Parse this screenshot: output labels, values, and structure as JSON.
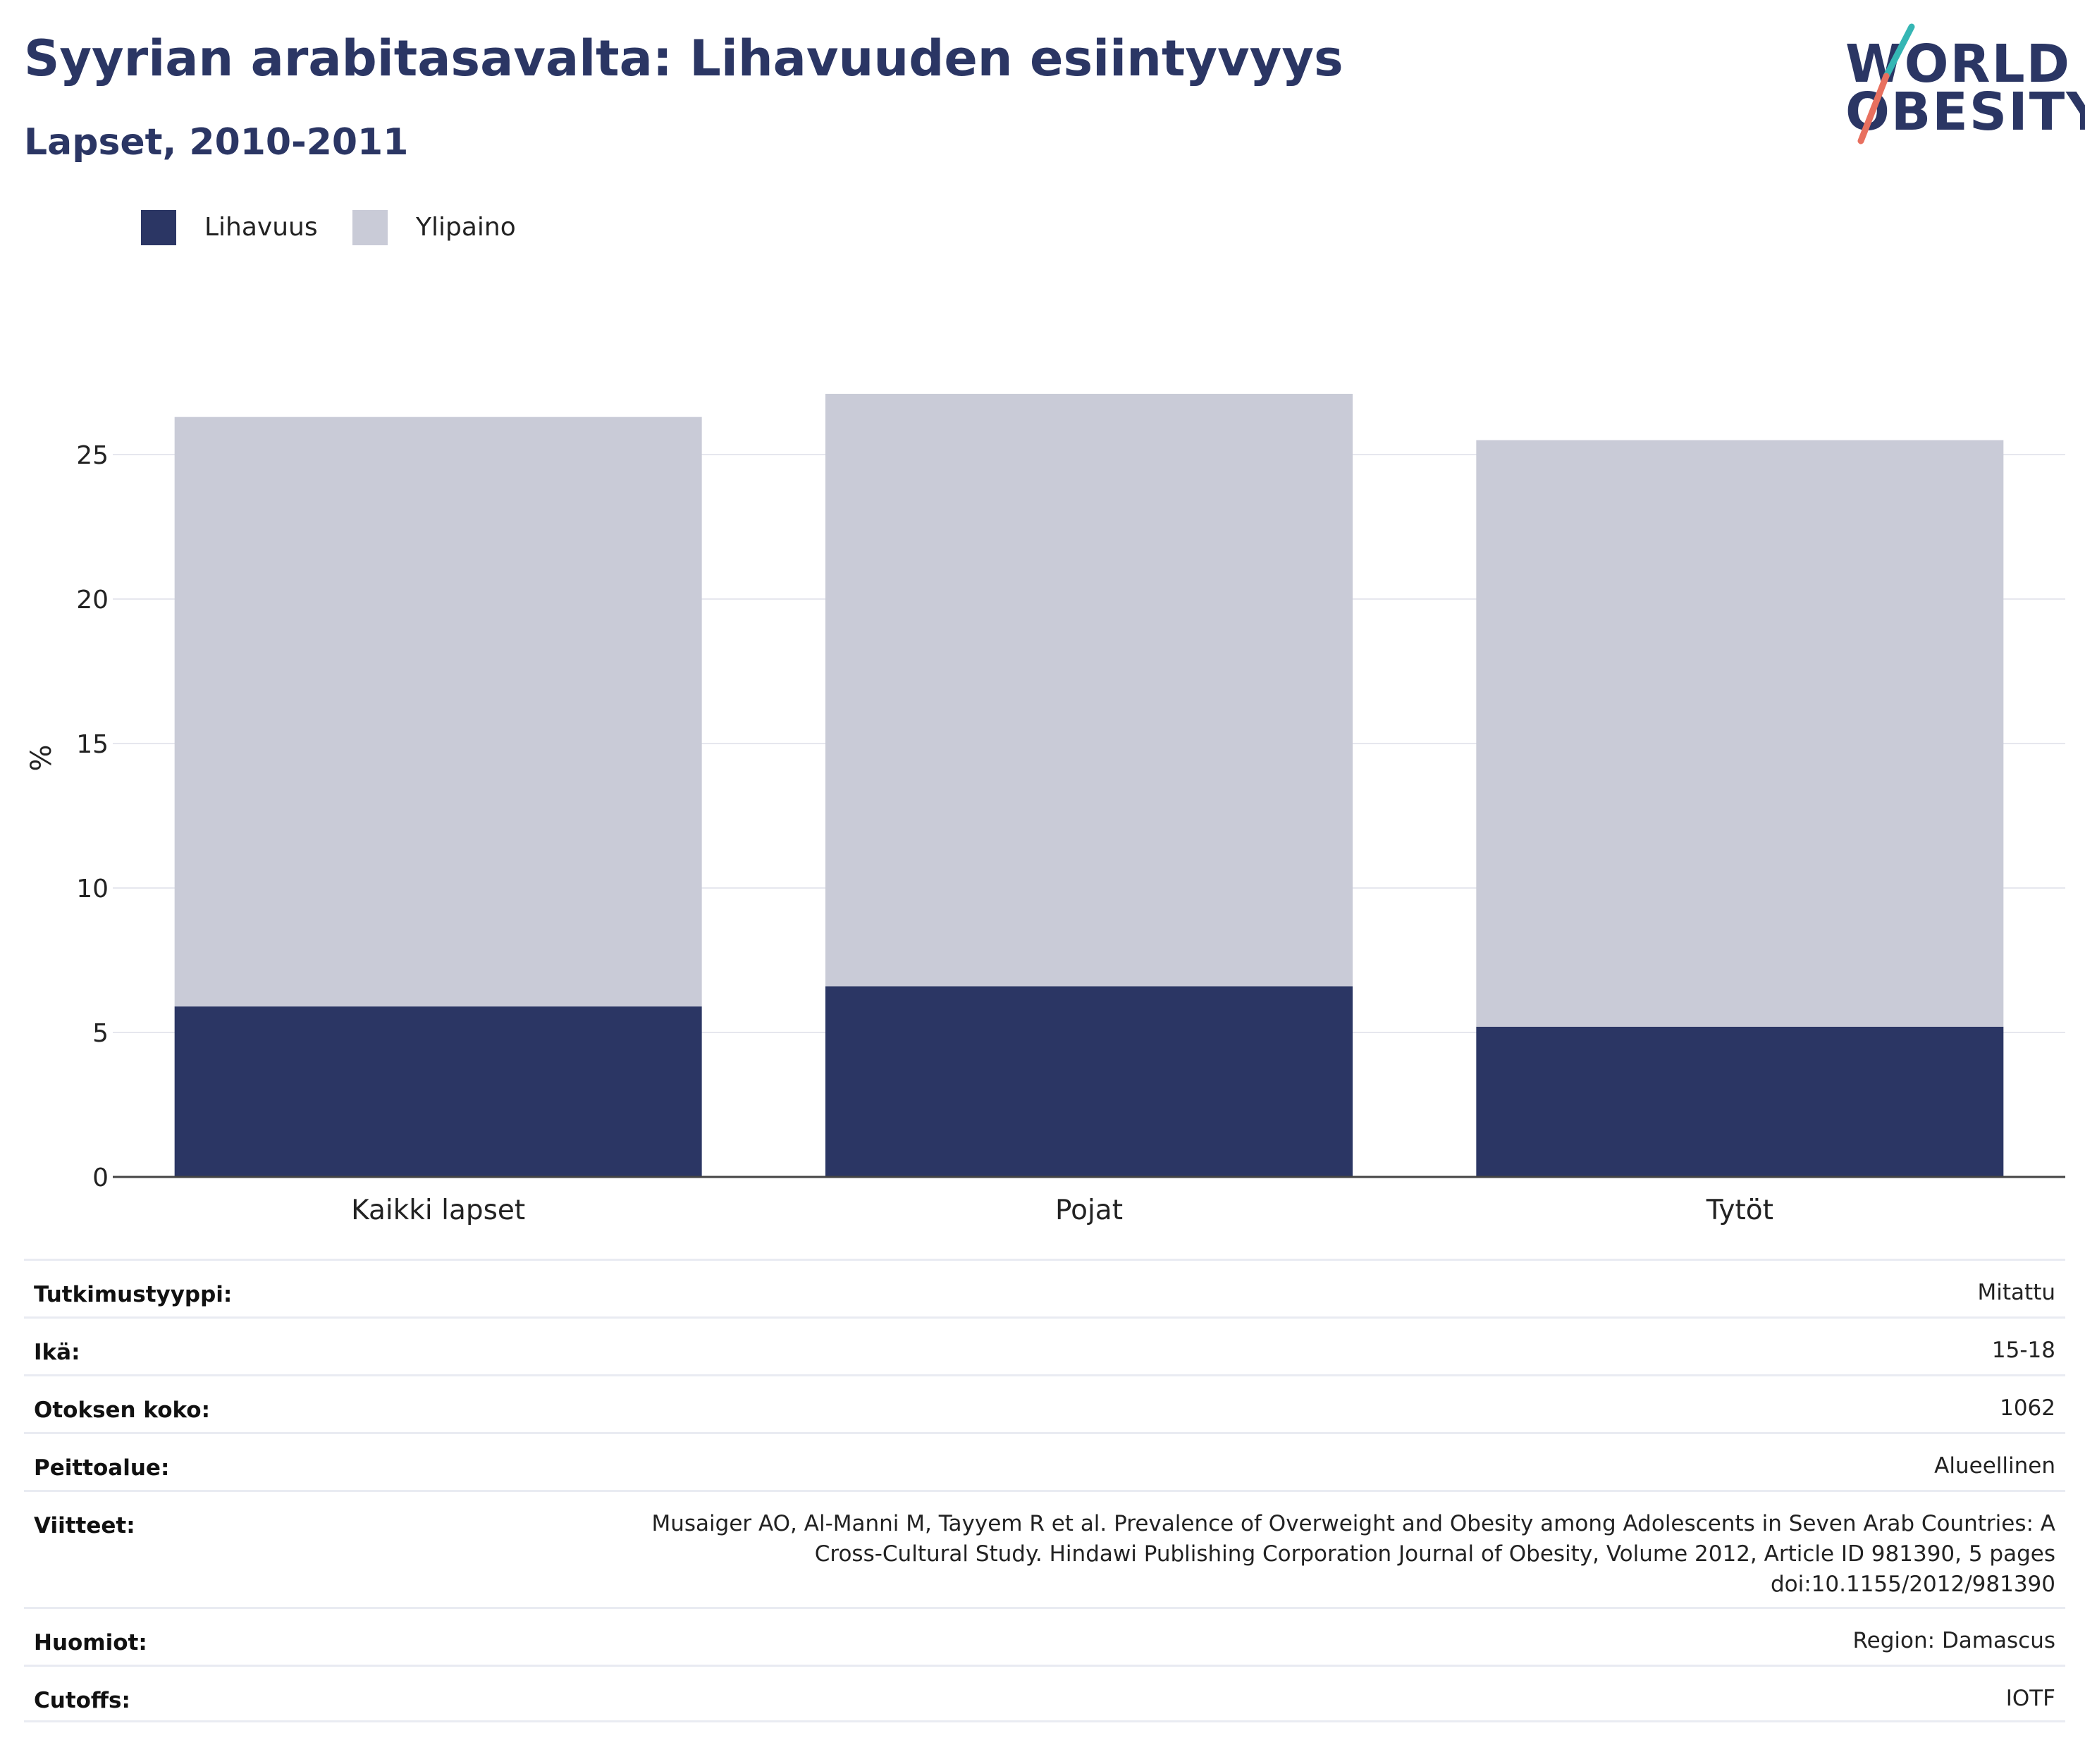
{
  "header": {
    "title": "Syyrian arabitasavalta: Lihavuuden esiintyvyys",
    "subtitle": "Lapset, 2010-2011"
  },
  "logo": {
    "line1": "WORLD",
    "line2": "OBESITY",
    "accent_colors": [
      "#35b6b4",
      "#e8705f"
    ]
  },
  "chart_data": {
    "type": "bar",
    "stacked": true,
    "title": "Syyrian arabitasavalta: Lihavuuden esiintyvyys",
    "subtitle": "Lapset, 2010-2011",
    "categories": [
      "Kaikki lapset",
      "Pojat",
      "Tytöt"
    ],
    "series": [
      {
        "name": "Lihavuus",
        "color": "#2b3664",
        "values": [
          5.9,
          6.6,
          5.2
        ]
      },
      {
        "name": "Ylipaino",
        "color": "#c9cbd7",
        "values": [
          20.4,
          20.5,
          20.3
        ]
      }
    ],
    "totals": [
      26.3,
      27.1,
      25.5
    ],
    "xlabel": "",
    "ylabel": "%",
    "ylim": [
      0,
      28
    ],
    "yticks": [
      0,
      5,
      10,
      15,
      20,
      25
    ],
    "grid": true,
    "legend_position": "top-left"
  },
  "info_table": [
    {
      "key": "Tutkimustyyppi:",
      "value": "Mitattu"
    },
    {
      "key": "Ikä:",
      "value": "15-18"
    },
    {
      "key": "Otoksen koko:",
      "value": "1062"
    },
    {
      "key": "Peittoalue:",
      "value": "Alueellinen"
    },
    {
      "key": "Viitteet:",
      "value": "Musaiger AO, Al-Manni M, Tayyem R et al. Prevalence of Overweight and Obesity among Adolescents in Seven Arab Countries: A Cross-Cultural Study. Hindawi Publishing Corporation Journal of Obesity, Volume 2012, Article ID 981390, 5 pages doi:10.1155/2012/981390"
    },
    {
      "key": "Huomiot:",
      "value": "Region: Damascus"
    },
    {
      "key": "Cutoffs:",
      "value": "IOTF"
    }
  ]
}
